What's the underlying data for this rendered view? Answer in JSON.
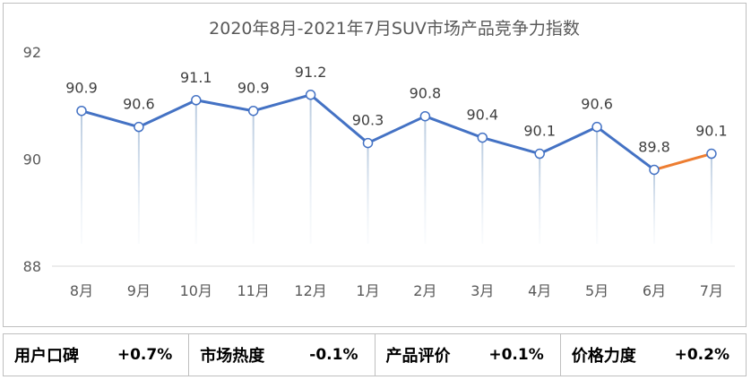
{
  "chart_data": {
    "type": "line",
    "title": "2020年8月-2021年7月SUV市场产品竞争力指数",
    "categories": [
      "8月",
      "9月",
      "10月",
      "11月",
      "12月",
      "1月",
      "2月",
      "3月",
      "4月",
      "5月",
      "6月",
      "7月"
    ],
    "values": [
      90.9,
      90.6,
      91.1,
      90.9,
      91.2,
      90.3,
      90.8,
      90.4,
      90.1,
      90.6,
      89.8,
      90.1
    ],
    "ylim": [
      88,
      92
    ],
    "yticks": [
      "88",
      "90",
      "92"
    ],
    "data_labels": [
      "90.9",
      "90.6",
      "91.1",
      "90.9",
      "91.2",
      "90.3",
      "90.8",
      "90.4",
      "90.1",
      "90.6",
      "89.8",
      "90.1"
    ],
    "line_color": "#4472c4",
    "highlight_color": "#ed7d31",
    "highlight_last_segment": true,
    "grid": false
  },
  "metrics": [
    {
      "label": "用户口碑",
      "value": "+0.7%"
    },
    {
      "label": "市场热度",
      "value": "-0.1%"
    },
    {
      "label": "产品评价",
      "value": "+0.1%"
    },
    {
      "label": "价格力度",
      "value": "+0.2%"
    }
  ]
}
